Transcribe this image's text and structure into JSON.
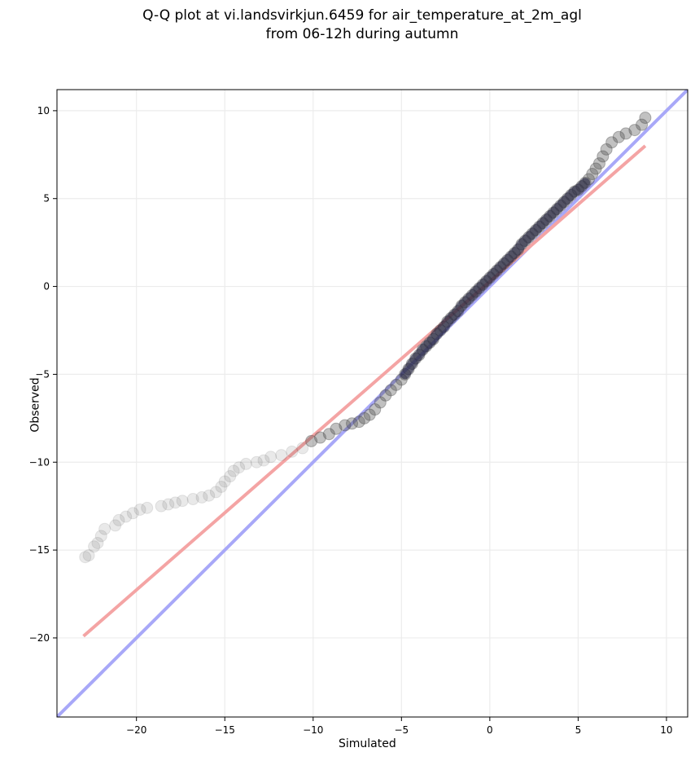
{
  "chart_data": {
    "type": "scatter",
    "title": "Q-Q plot at vi.landsvirkjun.6459 for air_temperature_at_2m_agl",
    "subtitle": "from 06-12h during autumn",
    "xlabel": "Simulated",
    "ylabel": "Observed",
    "xlim": [
      -24.5,
      11.2
    ],
    "ylim": [
      -24.5,
      11.2
    ],
    "x_ticks": [
      -20,
      -15,
      -10,
      -5,
      0,
      5,
      10
    ],
    "y_ticks": [
      -20,
      -15,
      -10,
      -5,
      0,
      5,
      10
    ],
    "x_tick_labels": [
      "−20",
      "−15",
      "−10",
      "−5",
      "0",
      "5",
      "10"
    ],
    "y_tick_labels": [
      "−20",
      "−15",
      "−10",
      "−5",
      "0",
      "5",
      "10"
    ],
    "grid": true,
    "colors": {
      "points": "#4d4d4d",
      "identity_line": "#a8a8f8",
      "fit_line": "#f4a4a4",
      "grid": "#ececec"
    },
    "reference_lines": [
      {
        "role": "identity",
        "x": [
          -24.5,
          11.2
        ],
        "y": [
          -24.5,
          11.2
        ]
      },
      {
        "role": "fit",
        "x": [
          -23,
          8.8
        ],
        "y": [
          -19.9,
          8.0
        ]
      }
    ],
    "series": [
      {
        "x": [
          -22.9,
          -22.7,
          -22.4,
          -22.2,
          -22.0,
          -21.8,
          -21.2,
          -21.0,
          -20.6,
          -20.2,
          -19.8,
          -19.4,
          -18.6,
          -18.2,
          -17.8,
          -17.4,
          -16.8,
          -16.3,
          -15.9,
          -15.5,
          -15.2,
          -15.0,
          -14.7,
          -14.5,
          -14.2,
          -13.8,
          -13.2,
          -12.8,
          -12.4,
          -11.8,
          -11.2,
          -10.6,
          -10.1,
          -9.6,
          -9.1,
          -8.7,
          -8.2,
          -7.8,
          -7.4,
          -7.1,
          -6.8,
          -6.5,
          -6.2,
          -5.9,
          -5.6,
          -5.3,
          -5.0,
          -4.8,
          -4.6,
          -4.4,
          -4.2,
          -4.0,
          -3.8,
          -3.6,
          -3.4,
          -3.2,
          -3.0,
          -2.8,
          -2.6,
          -2.4,
          -2.2,
          -2.0,
          -1.8,
          -1.6,
          -1.4,
          -1.2,
          -1.0,
          -0.8,
          -0.6,
          -0.4,
          -0.2,
          0.0,
          0.2,
          0.4,
          0.6,
          0.8,
          1.0,
          1.2,
          1.4,
          1.6,
          1.8,
          2.0,
          2.2,
          2.4,
          2.6,
          2.8,
          3.0,
          3.2,
          3.4,
          3.6,
          3.8,
          4.0,
          4.2,
          4.4,
          4.6,
          4.8,
          5.0,
          5.2,
          5.4,
          5.6,
          5.8,
          6.0,
          6.2,
          6.4,
          6.6,
          6.9,
          7.3,
          7.7,
          8.2,
          8.6,
          8.8
        ],
        "y": [
          -15.4,
          -15.3,
          -14.8,
          -14.6,
          -14.2,
          -13.8,
          -13.6,
          -13.3,
          -13.1,
          -12.9,
          -12.7,
          -12.6,
          -12.5,
          -12.4,
          -12.3,
          -12.2,
          -12.1,
          -12.0,
          -11.9,
          -11.7,
          -11.4,
          -11.1,
          -10.8,
          -10.5,
          -10.3,
          -10.1,
          -10.0,
          -9.9,
          -9.7,
          -9.6,
          -9.4,
          -9.2,
          -8.8,
          -8.6,
          -8.4,
          -8.1,
          -7.9,
          -7.8,
          -7.7,
          -7.5,
          -7.3,
          -7.0,
          -6.6,
          -6.2,
          -5.9,
          -5.6,
          -5.3,
          -5.0,
          -4.7,
          -4.4,
          -4.1,
          -3.9,
          -3.6,
          -3.4,
          -3.2,
          -3.0,
          -2.7,
          -2.5,
          -2.3,
          -2.0,
          -1.8,
          -1.6,
          -1.4,
          -1.1,
          -0.9,
          -0.7,
          -0.5,
          -0.3,
          -0.1,
          0.1,
          0.3,
          0.5,
          0.7,
          0.9,
          1.1,
          1.3,
          1.5,
          1.7,
          1.9,
          2.1,
          2.4,
          2.6,
          2.8,
          3.0,
          3.2,
          3.4,
          3.6,
          3.8,
          4.0,
          4.2,
          4.4,
          4.6,
          4.8,
          5.0,
          5.2,
          5.4,
          5.5,
          5.7,
          5.9,
          6.1,
          6.4,
          6.7,
          7.0,
          7.4,
          7.8,
          8.2,
          8.5,
          8.7,
          8.9,
          9.2,
          9.6
        ]
      }
    ]
  }
}
